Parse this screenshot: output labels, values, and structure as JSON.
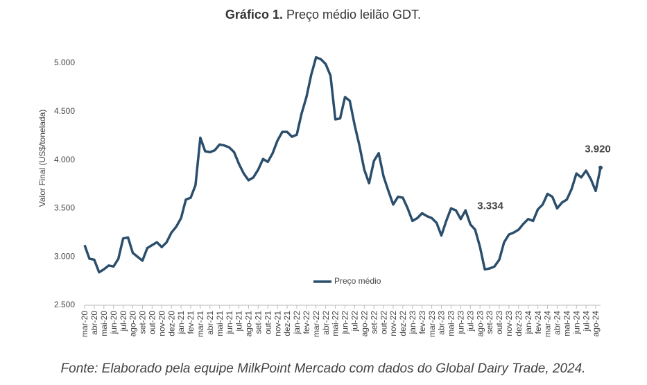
{
  "chart_data": {
    "type": "line",
    "title_label": "Gráfico 1.",
    "title": "Preço médio leilão GDT.",
    "ylabel": "Valor Final (US$/tonelada)",
    "source": "Fonte: Elaborado pela equipe MilkPoint Mercado com dados do Global Dairy Trade, 2024.",
    "categories": [
      "mar-20",
      null,
      "abr-20",
      null,
      "mai-20",
      null,
      "jun-20",
      null,
      "jul-20",
      null,
      "ago-20",
      null,
      "set-20",
      null,
      "out-20",
      null,
      "nov-20",
      null,
      "dez-20",
      null,
      "jan-21",
      null,
      "fev-21",
      null,
      "mar-21",
      null,
      "abr-21",
      null,
      "mai-21",
      null,
      "jun-21",
      null,
      "jul-21",
      null,
      "ago-21",
      null,
      "set-21",
      null,
      "out-21",
      null,
      "nov-21",
      null,
      "dez-21",
      null,
      "jan-22",
      null,
      "fev-22",
      null,
      "mar-22",
      null,
      "abr-22",
      null,
      "mai-22",
      null,
      "jun-22",
      null,
      "jul-22",
      null,
      "ago-22",
      null,
      "set-22",
      null,
      "out-22",
      null,
      "nov-22",
      null,
      "dez-22",
      null,
      "jan-23",
      null,
      "fev-23",
      null,
      "mar-23",
      null,
      "abr-23",
      null,
      "mai-23",
      null,
      "jun-23",
      null,
      "jul-23",
      null,
      "ago-23",
      null,
      "set-23",
      null,
      "out-23",
      null,
      "nov-23",
      null,
      "dez-23",
      null,
      "jan-24",
      null,
      "fev-24",
      null,
      "mar-24",
      null,
      "abr-24",
      null,
      "mai-24",
      null,
      "jun-24",
      null,
      "jul-24",
      null,
      "ago-24",
      null
    ],
    "series": [
      {
        "name": "Preço médio",
        "color": "#2a4e6c",
        "values": [
          3120,
          2980,
          2970,
          2840,
          2870,
          2910,
          2900,
          2980,
          3190,
          3200,
          3040,
          3000,
          2960,
          3090,
          3120,
          3150,
          3100,
          3150,
          3250,
          3310,
          3400,
          3590,
          3610,
          3740,
          4230,
          4090,
          4080,
          4100,
          4160,
          4150,
          4130,
          4080,
          3960,
          3860,
          3790,
          3820,
          3900,
          4010,
          3980,
          4070,
          4200,
          4290,
          4290,
          4240,
          4260,
          4480,
          4650,
          4880,
          5060,
          5040,
          4990,
          4870,
          4420,
          4430,
          4650,
          4610,
          4360,
          4150,
          3900,
          3760,
          3990,
          4070,
          3830,
          3680,
          3540,
          3620,
          3610,
          3500,
          3370,
          3400,
          3450,
          3420,
          3400,
          3350,
          3220,
          3370,
          3500,
          3480,
          3390,
          3480,
          3334,
          3280,
          3100,
          2870,
          2880,
          2900,
          2970,
          3150,
          3230,
          3250,
          3280,
          3340,
          3390,
          3370,
          3490,
          3540,
          3650,
          3620,
          3500,
          3560,
          3590,
          3700,
          3860,
          3820,
          3890,
          3800,
          3680,
          3920
        ],
        "value_labels": [
          null,
          null,
          null,
          null,
          null,
          null,
          null,
          null,
          null,
          null,
          null,
          null,
          null,
          null,
          null,
          null,
          null,
          null,
          null,
          null,
          null,
          null,
          null,
          null,
          null,
          null,
          null,
          null,
          null,
          null,
          null,
          null,
          null,
          null,
          null,
          null,
          null,
          null,
          null,
          null,
          null,
          null,
          null,
          null,
          null,
          null,
          null,
          null,
          null,
          null,
          null,
          null,
          null,
          null,
          null,
          null,
          null,
          null,
          null,
          null,
          null,
          null,
          null,
          null,
          null,
          null,
          null,
          null,
          null,
          null,
          null,
          null,
          null,
          null,
          null,
          null,
          null,
          null,
          null,
          null,
          "3.334",
          null,
          null,
          null,
          null,
          null,
          null,
          null,
          null,
          null,
          null,
          null,
          null,
          null,
          null,
          null,
          null,
          null,
          null,
          null,
          null,
          null,
          null,
          null,
          null,
          null,
          null,
          "3.920"
        ]
      }
    ],
    "ylim": [
      2500,
      5000
    ],
    "yticks": [
      {
        "value": 2500,
        "label": "2.500"
      },
      {
        "value": 3000,
        "label": "3.000"
      },
      {
        "value": 3500,
        "label": "3.500"
      },
      {
        "value": 4000,
        "label": "4.000"
      },
      {
        "value": 4500,
        "label": "4.500"
      },
      {
        "value": 5000,
        "label": "5.000"
      }
    ],
    "grid": false,
    "legend": "bottom"
  }
}
